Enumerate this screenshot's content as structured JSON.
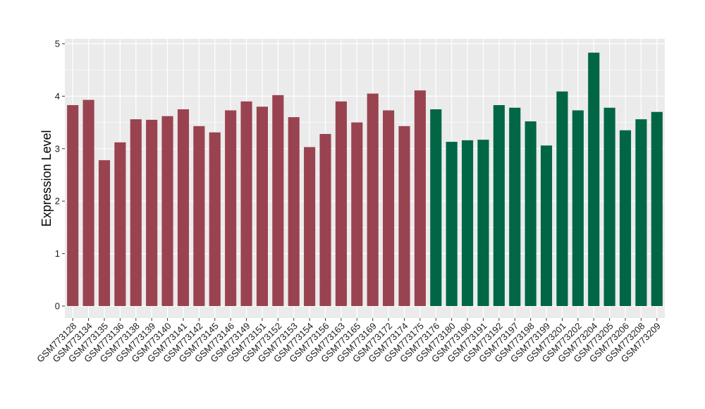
{
  "chart_data": {
    "type": "bar",
    "title": "",
    "xlabel": "",
    "ylabel": "Expression Level",
    "ylim": [
      0,
      5
    ],
    "yticks": [
      0,
      1,
      2,
      3,
      4,
      5
    ],
    "grid": true,
    "panel_background": "#ebebeb",
    "grid_color": "#ffffff",
    "categories": [
      "GSM773128",
      "GSM773134",
      "GSM773135",
      "GSM773136",
      "GSM773138",
      "GSM773139",
      "GSM773140",
      "GSM773141",
      "GSM773142",
      "GSM773145",
      "GSM773146",
      "GSM773149",
      "GSM773151",
      "GSM773152",
      "GSM773153",
      "GSM773154",
      "GSM773156",
      "GSM773163",
      "GSM773165",
      "GSM773169",
      "GSM773172",
      "GSM773174",
      "GSM773175",
      "GSM773176",
      "GSM773180",
      "GSM773190",
      "GSM773191",
      "GSM773192",
      "GSM773197",
      "GSM773198",
      "GSM773199",
      "GSM773201",
      "GSM773202",
      "GSM773204",
      "GSM773205",
      "GSM773206",
      "GSM773208",
      "GSM773209"
    ],
    "values": [
      3.83,
      3.93,
      2.78,
      3.12,
      3.56,
      3.55,
      3.62,
      3.75,
      3.43,
      3.31,
      3.73,
      3.9,
      3.8,
      4.02,
      3.6,
      3.03,
      3.28,
      3.9,
      3.5,
      4.05,
      3.73,
      3.43,
      4.11,
      3.75,
      3.13,
      3.16,
      3.17,
      3.83,
      3.78,
      3.52,
      3.06,
      4.09,
      3.73,
      4.83,
      3.78,
      3.35,
      3.56,
      3.7
    ],
    "groups": [
      1,
      1,
      1,
      1,
      1,
      1,
      1,
      1,
      1,
      1,
      1,
      1,
      1,
      1,
      1,
      1,
      1,
      1,
      1,
      1,
      1,
      1,
      1,
      2,
      2,
      2,
      2,
      2,
      2,
      2,
      2,
      2,
      2,
      2,
      2,
      2,
      2,
      2
    ],
    "group_colors": {
      "1": "#9a4350",
      "2": "#006646"
    }
  }
}
